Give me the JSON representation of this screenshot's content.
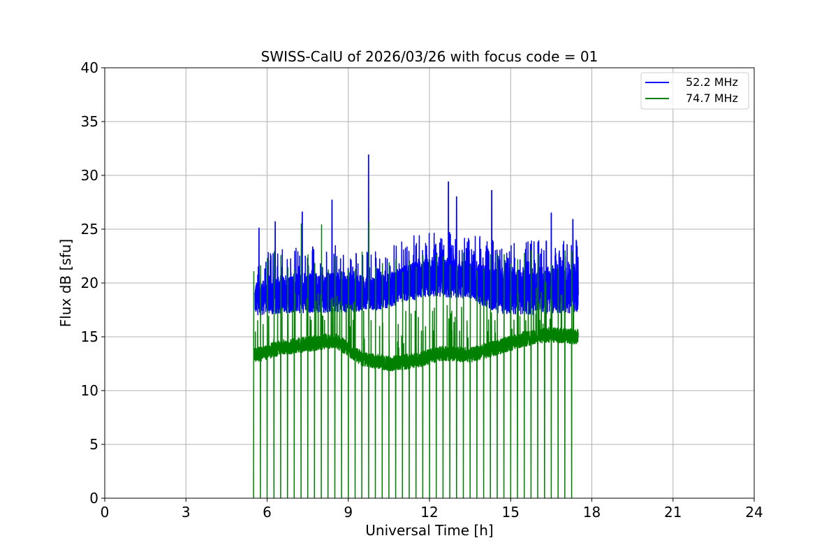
{
  "chart_data": {
    "type": "line",
    "title": "SWISS-CalU of 2026/03/26 with focus code = 01",
    "xlabel": "Universal Time [h]",
    "ylabel": "Flux dB [sfu]",
    "xlim": [
      0,
      24
    ],
    "ylim": [
      0,
      40
    ],
    "xticks": [
      0,
      3,
      6,
      9,
      12,
      15,
      18,
      21,
      24
    ],
    "yticks": [
      0,
      5,
      10,
      15,
      20,
      25,
      30,
      35,
      40
    ],
    "grid": true,
    "legend_position": "top-right",
    "observation_window": [
      5.5,
      17.5
    ],
    "calibration_spike_period_h": 0.25,
    "series": [
      {
        "name": "52.2 MHz",
        "color": "#0000ff",
        "baseline_profile": [
          [
            5.5,
            17.0
          ],
          [
            7.0,
            17.2
          ],
          [
            9.0,
            17.3
          ],
          [
            10.0,
            17.4
          ],
          [
            12.0,
            18.8
          ],
          [
            13.5,
            18.5
          ],
          [
            14.5,
            17.2
          ],
          [
            16.0,
            17.0
          ],
          [
            17.5,
            17.2
          ]
        ],
        "band_top_profile": [
          [
            5.5,
            20.0
          ],
          [
            7.0,
            21.0
          ],
          [
            9.0,
            21.0
          ],
          [
            10.0,
            20.5
          ],
          [
            12.0,
            22.5
          ],
          [
            13.5,
            22.0
          ],
          [
            14.5,
            21.5
          ],
          [
            16.0,
            21.5
          ],
          [
            17.5,
            22.0
          ]
        ],
        "peaks": [
          [
            5.7,
            25.1
          ],
          [
            6.3,
            25.7
          ],
          [
            7.3,
            26.6
          ],
          [
            8.4,
            27.7
          ],
          [
            9.75,
            31.9
          ],
          [
            12.7,
            29.4
          ],
          [
            13.0,
            28.0
          ],
          [
            14.3,
            28.6
          ],
          [
            16.5,
            26.5
          ],
          [
            17.3,
            25.9
          ]
        ]
      },
      {
        "name": "74.7 MHz",
        "color": "#008000",
        "baseline_profile": [
          [
            5.5,
            13.2
          ],
          [
            6.5,
            14.0
          ],
          [
            7.5,
            14.3
          ],
          [
            8.5,
            14.7
          ],
          [
            9.5,
            13.0
          ],
          [
            10.5,
            12.5
          ],
          [
            11.5,
            12.8
          ],
          [
            12.5,
            13.5
          ],
          [
            13.5,
            13.3
          ],
          [
            14.5,
            14.0
          ],
          [
            15.5,
            14.8
          ],
          [
            16.5,
            15.2
          ],
          [
            17.5,
            15.0
          ]
        ],
        "spike_top_range": [
          21.0,
          23.0
        ],
        "peaks": [
          [
            6.2,
            22.9
          ],
          [
            7.3,
            25.5
          ],
          [
            7.9,
            25.4
          ],
          [
            9.75,
            25.6
          ],
          [
            15.8,
            23.0
          ]
        ]
      }
    ]
  }
}
